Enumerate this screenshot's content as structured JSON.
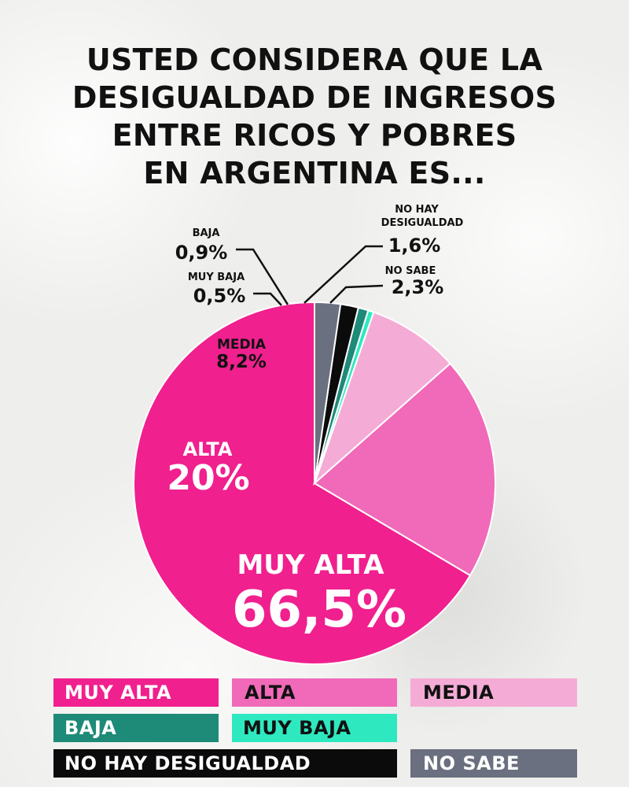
{
  "title_lines": [
    "USTED CONSIDERA QUE LA",
    "DESIGUALDAD DE INGRESOS",
    "ENTRE RICOS Y POBRES",
    "EN ARGENTINA ES..."
  ],
  "chart_data": {
    "type": "pie",
    "slices": [
      {
        "name": "MUY ALTA",
        "value": 66.5,
        "label": "66,5%",
        "color": "#f0208e"
      },
      {
        "name": "ALTA",
        "value": 20,
        "label": "20%",
        "color": "#f06ab9"
      },
      {
        "name": "MEDIA",
        "value": 8.2,
        "label": "8,2%",
        "color": "#f4acd6"
      },
      {
        "name": "MUY BAJA",
        "value": 0.5,
        "label": "0,5%",
        "color": "#2ee8c0"
      },
      {
        "name": "BAJA",
        "value": 0.9,
        "label": "0,9%",
        "color": "#1e8a78"
      },
      {
        "name": "NO HAY DESIGUALDAD",
        "value": 1.6,
        "label": "1,6%",
        "color": "#0b0b0b"
      },
      {
        "name": "NO SABE",
        "value": 2.3,
        "label": "2,3%",
        "color": "#6b7080"
      }
    ]
  },
  "callouts": {
    "baja": {
      "name": "BAJA",
      "value": "0,9%"
    },
    "muy_baja": {
      "name": "MUY BAJA",
      "value": "0,5%"
    },
    "media": {
      "name": "MEDIA",
      "value": "8,2%"
    },
    "alta": {
      "name": "ALTA",
      "value": "20%"
    },
    "muy_alta": {
      "name": "MUY ALTA",
      "value": "66,5%"
    },
    "no_hay_line1": "NO HAY",
    "no_hay_line2": "DESIGUALDAD",
    "no_hay_value": "1,6%",
    "no_sabe": {
      "name": "NO SABE",
      "value": "2,3%"
    }
  },
  "legend": {
    "muy_alta": "MUY ALTA",
    "alta": "ALTA",
    "media": "MEDIA",
    "baja": "BAJA",
    "muy_baja": "MUY BAJA",
    "no_hay": "NO HAY DESIGUALDAD",
    "no_sabe": "NO SABE"
  },
  "colors": {
    "muy_alta": "#f0208e",
    "alta": "#f06ab9",
    "media": "#f4acd6",
    "baja": "#1e8a78",
    "muy_baja": "#2ee8c0",
    "no_hay": "#0b0b0b",
    "no_sabe": "#6b7080"
  }
}
